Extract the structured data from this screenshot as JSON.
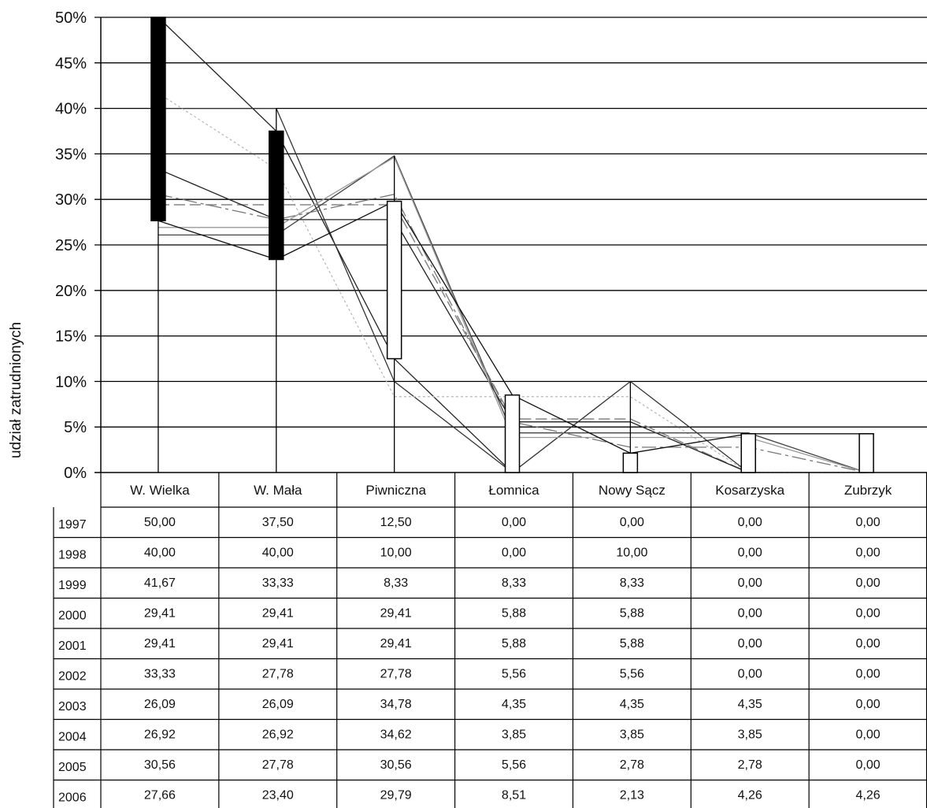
{
  "chart_data": {
    "type": "line",
    "title": "",
    "xlabel": "",
    "ylabel": "udział zatrudnionych",
    "ylim": [
      0,
      50
    ],
    "y_ticks": [
      "0%",
      "5%",
      "10%",
      "15%",
      "20%",
      "25%",
      "30%",
      "35%",
      "40%",
      "45%",
      "50%"
    ],
    "grid": true,
    "categories": [
      "W. Wielka",
      "W. Mała",
      "Piwniczna",
      "Łomnica",
      "Nowy Sącz",
      "Kosarzyska",
      "Zubrzyk"
    ],
    "series": [
      {
        "name": "1997",
        "values": [
          "50,00",
          "37,50",
          "12,50",
          "0,00",
          "0,00",
          "0,00",
          "0,00"
        ]
      },
      {
        "name": "1998",
        "values": [
          "40,00",
          "40,00",
          "10,00",
          "0,00",
          "10,00",
          "0,00",
          "0,00"
        ]
      },
      {
        "name": "1999",
        "values": [
          "41,67",
          "33,33",
          "8,33",
          "8,33",
          "8,33",
          "0,00",
          "0,00"
        ]
      },
      {
        "name": "2000",
        "values": [
          "29,41",
          "29,41",
          "29,41",
          "5,88",
          "5,88",
          "0,00",
          "0,00"
        ]
      },
      {
        "name": "2001",
        "values": [
          "29,41",
          "29,41",
          "29,41",
          "5,88",
          "5,88",
          "0,00",
          "0,00"
        ]
      },
      {
        "name": "2002",
        "values": [
          "33,33",
          "27,78",
          "27,78",
          "5,56",
          "5,56",
          "0,00",
          "0,00"
        ]
      },
      {
        "name": "2003",
        "values": [
          "26,09",
          "26,09",
          "34,78",
          "4,35",
          "4,35",
          "4,35",
          "0,00"
        ]
      },
      {
        "name": "2004",
        "values": [
          "26,92",
          "26,92",
          "34,62",
          "3,85",
          "3,85",
          "3,85",
          "0,00"
        ]
      },
      {
        "name": "2005",
        "values": [
          "30,56",
          "27,78",
          "30,56",
          "5,56",
          "2,78",
          "2,78",
          "0,00"
        ]
      },
      {
        "name": "2006",
        "values": [
          "27,66",
          "23,40",
          "29,79",
          "8,51",
          "2,13",
          "4,26",
          "4,26"
        ]
      }
    ],
    "series_style": [
      {
        "color": "#222222",
        "dash": ""
      },
      {
        "color": "#333333",
        "dash": ""
      },
      {
        "color": "#bbbbbb",
        "dash": "3 3"
      },
      {
        "color": "#555555",
        "dash": "14 6"
      },
      {
        "color": "#888888",
        "dash": "14 6"
      },
      {
        "color": "#222222",
        "dash": ""
      },
      {
        "color": "#444444",
        "dash": ""
      },
      {
        "color": "#999999",
        "dash": ""
      },
      {
        "color": "#777777",
        "dash": "18 5 4 5"
      },
      {
        "color": "#111111",
        "dash": ""
      }
    ],
    "boxes": {
      "description_free": true,
      "open_series": "1997",
      "close_series": "2006"
    }
  }
}
